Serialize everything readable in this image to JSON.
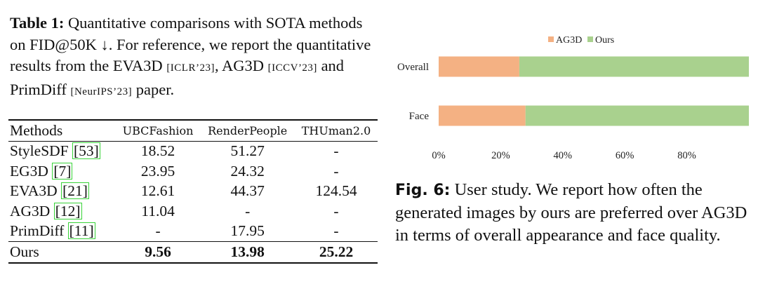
{
  "table_caption": {
    "label": "Table 1:",
    "text_1": " Quantitative comparisons with SOTA methods on FID@50K ↓. For reference, we report the quantitative results from the EVA3D ",
    "cite_1": "[ICLR’23]",
    "text_2": ", AG3D ",
    "cite_2": "[ICCV’23]",
    "text_3": " and PrimDiff ",
    "cite_3": "[NeurIPS’23]",
    "text_4": " paper."
  },
  "table": {
    "headers": [
      "Methods",
      "UBCFashion",
      "RenderPeople",
      "THUman2.0"
    ],
    "rows": [
      {
        "method": "StyleSDF ",
        "ref": "[53]",
        "values": [
          "18.52",
          "51.27",
          "-"
        ]
      },
      {
        "method": "EG3D ",
        "ref": "[7]",
        "values": [
          "23.95",
          "24.32",
          "-"
        ]
      },
      {
        "method": "EVA3D ",
        "ref": "[21]",
        "values": [
          "12.61",
          "44.37",
          "124.54"
        ]
      },
      {
        "method": "AG3D ",
        "ref": "[12]",
        "values": [
          "11.04",
          "-",
          "-"
        ]
      },
      {
        "method": "PrimDiff ",
        "ref": "[11]",
        "values": [
          "-",
          "17.95",
          "-"
        ]
      }
    ],
    "ours": {
      "method": "Ours",
      "values": [
        "9.56",
        "13.98",
        "25.22"
      ]
    }
  },
  "chart_data": {
    "type": "bar",
    "orientation": "horizontal",
    "stacked": true,
    "categories": [
      "Overall",
      "Face"
    ],
    "series": [
      {
        "name": "AG3D",
        "values": [
          26,
          28
        ],
        "color": "#f4b183"
      },
      {
        "name": "Ours",
        "values": [
          74,
          72
        ],
        "color": "#a9d18e"
      }
    ],
    "xticks": [
      "0%",
      "20%",
      "40%",
      "60%",
      "80%"
    ],
    "xtick_values": [
      0,
      20,
      40,
      60,
      80
    ],
    "xlim": [
      0,
      100
    ],
    "legend_position": "top-center",
    "title": "",
    "xlabel": "",
    "ylabel": ""
  },
  "fig_caption": {
    "label": "Fig. 6:",
    "text": " User study. We report how often the generated images by ours are preferred over AG3D in terms of overall appearance and face quality."
  }
}
